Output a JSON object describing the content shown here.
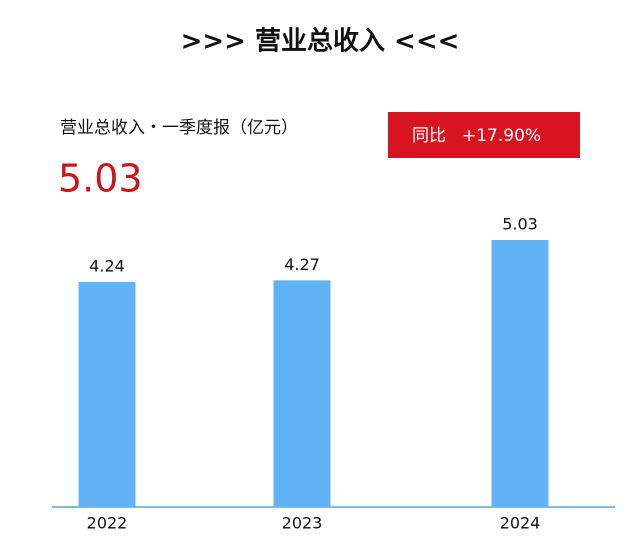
{
  "chart_data": {
    "type": "bar",
    "title": ">>> 营业总收入 <<<",
    "subtitle": "营业总收入・一季度报（亿元）",
    "highlight": "5.03",
    "badge": {
      "label": "同比",
      "value": "+17.90%"
    },
    "categories": [
      "2022",
      "2023",
      "2024"
    ],
    "values": [
      4.24,
      4.27,
      5.03
    ],
    "color": "#62b3f6"
  }
}
